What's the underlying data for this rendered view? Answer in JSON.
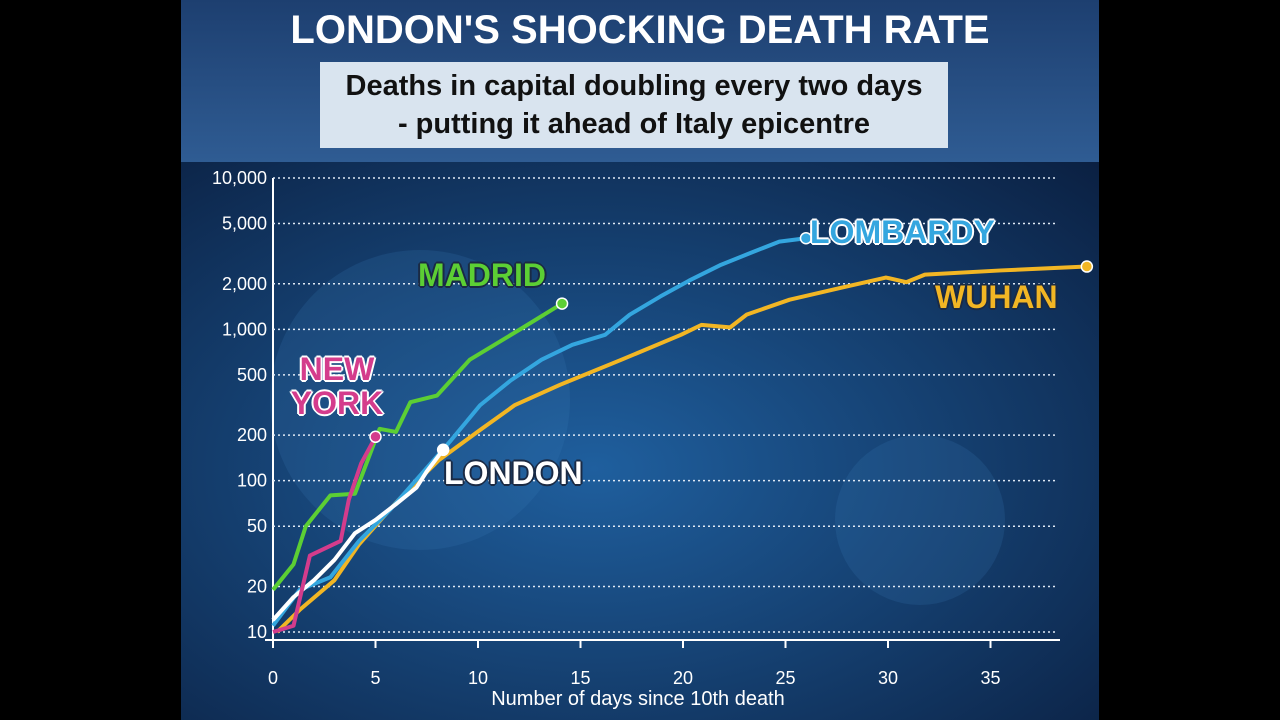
{
  "chart_data": {
    "type": "line",
    "title": "LONDON'S SHOCKING DEATH RATE",
    "subtitle": "Deaths in capital doubling every two days - putting it ahead of Italy epicentre",
    "x_label": "Number of days since 10th death",
    "xlim": [
      0,
      40
    ],
    "xticks": [
      0,
      5,
      10,
      15,
      20,
      25,
      30,
      35
    ],
    "ylim": [
      10,
      10000
    ],
    "log_scale": "y",
    "grid": true,
    "yticks": [
      10,
      20,
      50,
      100,
      200,
      500,
      {
        "value": 1000,
        "label": "1,000"
      },
      {
        "value": 2000,
        "label": "2,000"
      },
      {
        "value": 5000,
        "label": "5,000"
      },
      {
        "value": 10000,
        "label": "10,000"
      }
    ],
    "series": [
      {
        "name": "WUHAN",
        "color": "#f2b624",
        "x": [
          0.2,
          1.3,
          3,
          4.2,
          6.1,
          8.1,
          10.1,
          11.8,
          14,
          17,
          19.9,
          20.9,
          22.3,
          23.1,
          25.2,
          27.7,
          29.9,
          30.9,
          31.8,
          35.5,
          39.7
        ],
        "values": [
          10,
          14,
          22,
          38,
          74,
          137,
          216,
          316,
          430,
          630,
          920,
          1070,
          1030,
          1250,
          1570,
          1880,
          2200,
          2050,
          2300,
          2450,
          2600
        ]
      },
      {
        "name": "LOMBARDY",
        "color": "#34a6df",
        "x": [
          0,
          1.3,
          2.8,
          4.2,
          5.7,
          7.2,
          8.7,
          10.1,
          11.6,
          13.1,
          14.6,
          16.2,
          17.4,
          18.9,
          20.3,
          21.8,
          23.3,
          24.7,
          26
        ],
        "values": [
          11,
          19,
          23,
          40,
          64,
          109,
          186,
          315,
          460,
          630,
          790,
          920,
          1250,
          1650,
          2100,
          2650,
          3200,
          3800,
          4000
        ]
      },
      {
        "name": "MADRID",
        "color": "#5ccf34",
        "x": [
          0,
          1,
          1.6,
          2.8,
          4,
          5.2,
          6,
          6.7,
          8,
          9.6,
          12,
          14.1
        ],
        "values": [
          19,
          28,
          50,
          80,
          82,
          220,
          210,
          330,
          365,
          630,
          990,
          1480
        ]
      },
      {
        "name": "LONDON",
        "color": "#ffffff",
        "x": [
          0,
          1,
          2,
          3,
          4,
          5,
          6,
          7,
          7.5,
          8.3
        ],
        "values": [
          12,
          17,
          22,
          30,
          45,
          55,
          70,
          90,
          115,
          160
        ]
      },
      {
        "name": "NEW YORK",
        "color": "#d43c8c",
        "x": [
          0,
          1,
          1.8,
          3.3,
          3.7,
          4.3,
          5
        ],
        "values": [
          10,
          11,
          32,
          40,
          75,
          130,
          195
        ]
      }
    ]
  }
}
